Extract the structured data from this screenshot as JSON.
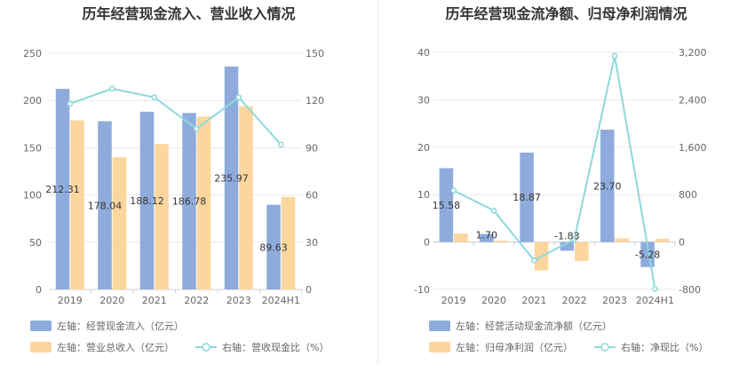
{
  "titles": {
    "left": "历年经营现金流入、营业收入情况",
    "right": "历年经营现金流净额、归母净利润情况"
  },
  "legends": {
    "left": [
      "左轴：经营现金流入（亿元）",
      "左轴：营业总收入（亿元）",
      "右轴：营收现金比（%）"
    ],
    "right": [
      "左轴：经营活动现金流净额（亿元）",
      "左轴：归母净利润（亿元）",
      "右轴：净现比（%）"
    ]
  },
  "colors": {
    "bar1": "#8eabdb",
    "bar2": "#fdd69e",
    "line": "#8ed8dc",
    "grid": "#e8e8e8",
    "axis": "#cfcfcf"
  },
  "chart_data": [
    {
      "type": "bar",
      "title": "历年经营现金流入、营业收入情况",
      "categories": [
        "2019",
        "2020",
        "2021",
        "2022",
        "2023",
        "2024H1"
      ],
      "series": [
        {
          "name": "左轴：经营现金流入（亿元）",
          "axis": "left",
          "type": "bar",
          "values": [
            212.31,
            178.04,
            188.12,
            186.78,
            235.97,
            89.63
          ],
          "labels": [
            "212.31",
            "178.04",
            "188.12",
            "186.78",
            "235.97",
            "89.63"
          ]
        },
        {
          "name": "左轴：营业总收入（亿元）",
          "axis": "left",
          "type": "bar",
          "values": [
            179,
            140,
            154,
            183,
            194,
            98
          ]
        },
        {
          "name": "右轴：营收现金比（%）",
          "axis": "right",
          "type": "line",
          "values": [
            118,
            127.5,
            122,
            102,
            122,
            92
          ]
        }
      ],
      "left_axis": {
        "min": 0,
        "max": 250,
        "ticks": [
          "0",
          "50",
          "100",
          "150",
          "200",
          "250"
        ]
      },
      "right_axis": {
        "min": 0,
        "max": 150,
        "ticks": [
          "0",
          "30",
          "60",
          "90",
          "120",
          "150"
        ]
      },
      "grid": true,
      "legend_position": "bottom-left"
    },
    {
      "type": "bar",
      "title": "历年经营现金流净额、归母净利润情况",
      "categories": [
        "2019",
        "2020",
        "2021",
        "2022",
        "2023",
        "2024H1"
      ],
      "series": [
        {
          "name": "左轴：经营活动现金流净额（亿元）",
          "axis": "left",
          "type": "bar",
          "values": [
            15.58,
            1.7,
            18.87,
            -1.83,
            23.7,
            -5.28
          ],
          "labels": [
            "15.58",
            "1.70",
            "18.87",
            "-1.83",
            "23.70",
            "-5.28"
          ]
        },
        {
          "name": "左轴：归母净利润（亿元）",
          "axis": "left",
          "type": "bar",
          "values": [
            1.8,
            0.3,
            -6.0,
            -4.0,
            0.8,
            0.7
          ]
        },
        {
          "name": "右轴：净现比（%）",
          "axis": "right",
          "type": "line",
          "values": [
            870,
            530,
            -310,
            50,
            3140,
            -790
          ]
        }
      ],
      "left_axis": {
        "min": -10,
        "max": 40,
        "ticks": [
          "-10",
          "0",
          "10",
          "20",
          "30",
          "40"
        ]
      },
      "right_axis": {
        "min": -800,
        "max": 3200,
        "ticks": [
          "-800",
          "0",
          "800",
          "1,600",
          "2,400",
          "3,200"
        ]
      },
      "grid": true,
      "legend_position": "bottom-left"
    }
  ]
}
